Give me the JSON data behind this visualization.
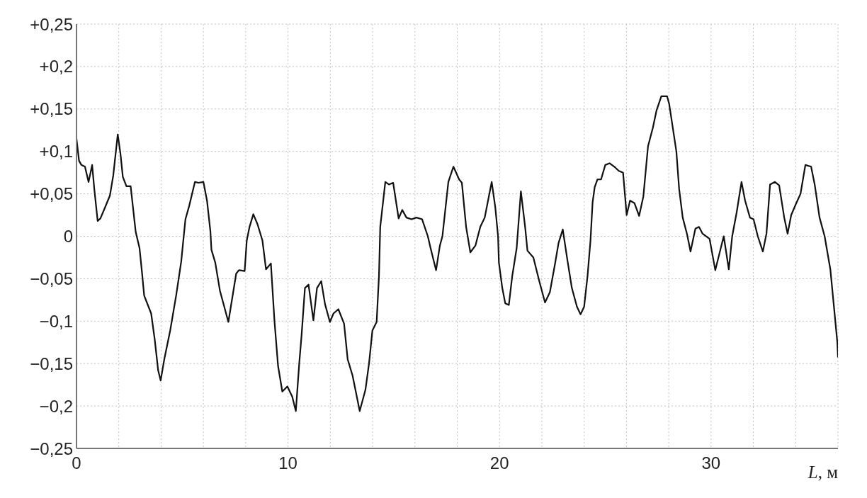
{
  "chart_data": {
    "type": "line",
    "xlabel": "L, м",
    "color": "#111111",
    "line_style": "solid",
    "grid": true,
    "xlim": [
      0,
      36
    ],
    "ylim": [
      -0.25,
      0.25
    ],
    "xticks": [
      0,
      {
        "value": 2,
        "label": null
      },
      {
        "value": 4,
        "label": null
      },
      {
        "value": 6,
        "label": null
      },
      {
        "value": 8,
        "label": null
      },
      10,
      {
        "value": 12,
        "label": null
      },
      {
        "value": 14,
        "label": null
      },
      {
        "value": 16,
        "label": null
      },
      {
        "value": 18,
        "label": null
      },
      20,
      {
        "value": 22,
        "label": null
      },
      {
        "value": 24,
        "label": null
      },
      {
        "value": 26,
        "label": null
      },
      {
        "value": 28,
        "label": null
      },
      30,
      {
        "value": 32,
        "label": null
      },
      {
        "value": 34,
        "label": null
      }
    ],
    "yticks": [
      {
        "value": -0.25,
        "label": "−0,25"
      },
      {
        "value": -0.2,
        "label": "−0,2"
      },
      {
        "value": -0.15,
        "label": "−0,15"
      },
      {
        "value": -0.1,
        "label": "−0,1"
      },
      {
        "value": -0.05,
        "label": "−0,05"
      },
      0,
      {
        "value": 0.05,
        "label": "+0,05"
      },
      {
        "value": 0.1,
        "label": "+0,1"
      },
      {
        "value": 0.15,
        "label": "+0,15"
      },
      {
        "value": 0.2,
        "label": "+0,2"
      },
      {
        "value": 0.25,
        "label": "+0,25"
      }
    ],
    "x": [
      0,
      0.12,
      0.23,
      0.4,
      0.57,
      0.74,
      0.84,
      1.0,
      1.13,
      1.35,
      1.58,
      1.74,
      1.95,
      2.08,
      2.19,
      2.36,
      2.56,
      2.8,
      2.98,
      3.09,
      3.2,
      3.53,
      3.7,
      3.86,
      3.98,
      4.15,
      4.43,
      4.71,
      4.95,
      5.15,
      5.33,
      5.6,
      5.77,
      6.0,
      6.17,
      6.33,
      6.38,
      6.56,
      6.78,
      7.18,
      7.55,
      7.68,
      7.95,
      8.05,
      8.18,
      8.36,
      8.56,
      8.79,
      8.96,
      9.19,
      9.36,
      9.53,
      9.73,
      9.97,
      10.2,
      10.37,
      10.53,
      10.64,
      10.8,
      10.97,
      11.2,
      11.37,
      11.57,
      11.75,
      11.98,
      12.15,
      12.38,
      12.65,
      12.82,
      13.05,
      13.39,
      13.66,
      13.83,
      13.99,
      14.19,
      14.3,
      14.36,
      14.6,
      14.77,
      14.97,
      15.23,
      15.4,
      15.6,
      15.84,
      16.07,
      16.34,
      16.61,
      16.74,
      17.0,
      17.18,
      17.3,
      17.58,
      17.82,
      18.09,
      18.22,
      18.42,
      18.62,
      18.86,
      19.09,
      19.3,
      19.63,
      19.8,
      19.93,
      19.97,
      20.13,
      20.27,
      20.44,
      20.6,
      20.81,
      21.01,
      21.21,
      21.32,
      21.6,
      21.88,
      22.15,
      22.38,
      22.62,
      22.79,
      22.99,
      23.22,
      23.42,
      23.66,
      23.83,
      24.0,
      24.16,
      24.3,
      24.4,
      24.5,
      24.63,
      24.8,
      25.0,
      25.2,
      25.47,
      25.64,
      25.84,
      26.01,
      26.17,
      26.38,
      26.6,
      26.8,
      27.02,
      27.25,
      27.42,
      27.65,
      27.92,
      28.02,
      28.19,
      28.36,
      28.49,
      28.66,
      28.86,
      29.03,
      29.26,
      29.43,
      29.6,
      29.93,
      30.2,
      30.6,
      30.84,
      31.0,
      31.21,
      31.44,
      31.61,
      31.84,
      32.01,
      32.21,
      32.45,
      32.62,
      32.79,
      33.02,
      33.22,
      33.46,
      33.62,
      33.79,
      34.03,
      34.23,
      34.46,
      34.73,
      34.9,
      35.13,
      35.37,
      35.64,
      35.81,
      35.97,
      36
    ],
    "values": [
      0.115,
      0.089,
      0.084,
      0.082,
      0.064,
      0.084,
      0.056,
      0.018,
      0.021,
      0.034,
      0.048,
      0.072,
      0.12,
      0.097,
      0.07,
      0.059,
      0.059,
      0.005,
      -0.014,
      -0.041,
      -0.07,
      -0.091,
      -0.122,
      -0.158,
      -0.17,
      -0.145,
      -0.111,
      -0.07,
      -0.03,
      0.02,
      0.036,
      0.064,
      0.063,
      0.064,
      0.042,
      0.006,
      -0.016,
      -0.031,
      -0.064,
      -0.101,
      -0.044,
      -0.04,
      -0.041,
      -0.005,
      0.011,
      0.026,
      0.014,
      -0.005,
      -0.039,
      -0.032,
      -0.1,
      -0.153,
      -0.183,
      -0.177,
      -0.189,
      -0.206,
      -0.15,
      -0.117,
      -0.061,
      -0.057,
      -0.099,
      -0.061,
      -0.053,
      -0.08,
      -0.101,
      -0.091,
      -0.086,
      -0.103,
      -0.145,
      -0.164,
      -0.206,
      -0.181,
      -0.15,
      -0.111,
      -0.101,
      -0.047,
      0.011,
      0.064,
      0.061,
      0.063,
      0.021,
      0.031,
      0.022,
      0.02,
      0.022,
      0.02,
      0.0,
      -0.014,
      -0.04,
      -0.011,
      0.0,
      0.064,
      0.082,
      0.067,
      0.063,
      0.011,
      -0.019,
      -0.011,
      0.011,
      0.022,
      0.064,
      0.034,
      0.0,
      -0.031,
      -0.061,
      -0.079,
      -0.081,
      -0.047,
      -0.014,
      0.053,
      0.011,
      -0.017,
      -0.025,
      -0.053,
      -0.078,
      -0.066,
      -0.033,
      -0.008,
      0.008,
      -0.03,
      -0.061,
      -0.083,
      -0.092,
      -0.083,
      -0.047,
      -0.005,
      0.04,
      0.058,
      0.067,
      0.067,
      0.084,
      0.086,
      0.081,
      0.077,
      0.075,
      0.025,
      0.042,
      0.039,
      0.024,
      0.047,
      0.106,
      0.128,
      0.148,
      0.165,
      0.165,
      0.156,
      0.128,
      0.1,
      0.056,
      0.022,
      0.003,
      -0.018,
      0.009,
      0.011,
      0.003,
      -0.003,
      -0.04,
      0.0,
      -0.039,
      0.0,
      0.028,
      0.064,
      0.042,
      0.022,
      0.02,
      0.0,
      -0.018,
      0.003,
      0.061,
      0.064,
      0.06,
      0.022,
      0.003,
      0.025,
      0.039,
      0.05,
      0.084,
      0.082,
      0.061,
      0.022,
      0.0,
      -0.039,
      -0.083,
      -0.125,
      -0.142
    ]
  }
}
